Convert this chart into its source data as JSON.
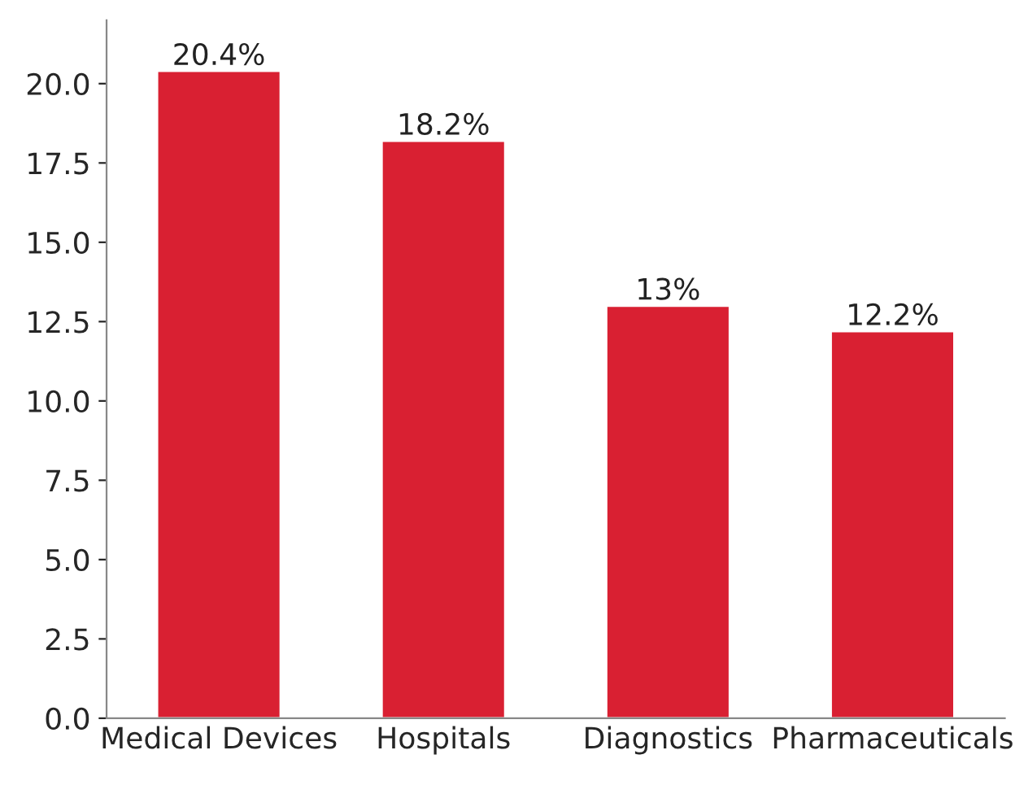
{
  "chart_data": {
    "type": "bar",
    "categories": [
      "Medical Devices",
      "Hospitals",
      "Diagnostics",
      "Pharmaceuticals"
    ],
    "values": [
      20.4,
      18.2,
      13,
      12.2
    ],
    "value_labels": [
      "20.4%",
      "18.2%",
      "13%",
      "12.2%"
    ],
    "color": "#d92032",
    "ylim": [
      0,
      22
    ],
    "yticks": [
      {
        "value": 0,
        "label": "0.0"
      },
      {
        "value": 2.5,
        "label": "2.5"
      },
      {
        "value": 5,
        "label": "5.0"
      },
      {
        "value": 7.5,
        "label": "7.5"
      },
      {
        "value": 10,
        "label": "10.0"
      },
      {
        "value": 12.5,
        "label": "12.5"
      },
      {
        "value": 15,
        "label": "15.0"
      },
      {
        "value": 17.5,
        "label": "17.5"
      },
      {
        "value": 20,
        "label": "20.0"
      }
    ],
    "grid": false
  }
}
